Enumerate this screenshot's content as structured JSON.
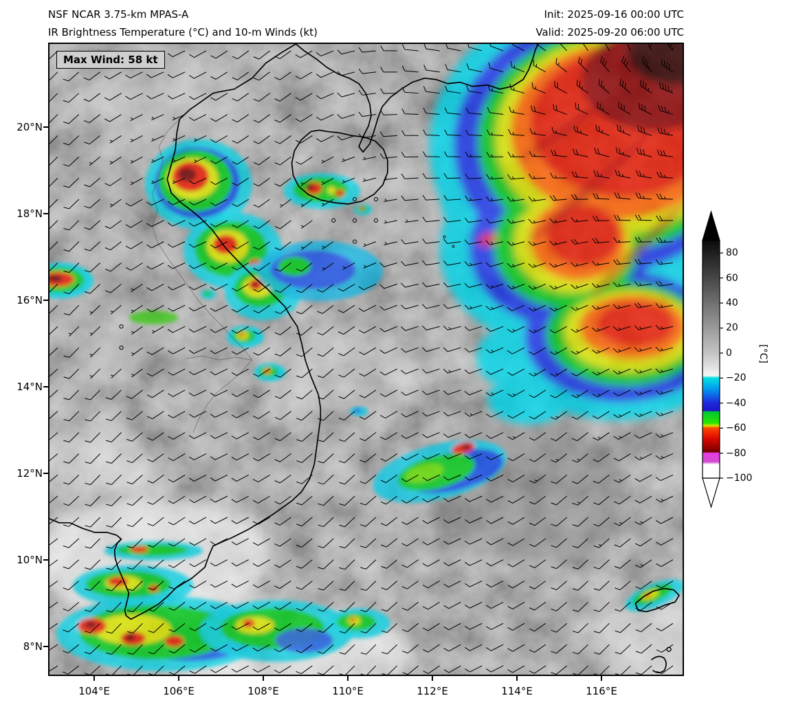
{
  "header": {
    "model_line": "NSF NCAR 3.75-km MPAS-A",
    "field_line": "IR Brightness Temperature (°C) and 10-m Winds (kt)",
    "init_line": "Init: 2025-09-16 00:00 UTC",
    "valid_line": "Valid: 2025-09-20 06:00 UTC"
  },
  "map": {
    "max_wind_label": "Max Wind: 58 kt"
  },
  "axes": {
    "y_ticks": [
      "20°N",
      "18°N",
      "16°N",
      "14°N",
      "12°N",
      "10°N",
      "8°N"
    ],
    "x_ticks": [
      "104°E",
      "106°E",
      "108°E",
      "110°E",
      "112°E",
      "114°E",
      "116°E"
    ]
  },
  "colorbar": {
    "ticks": [
      "80",
      "60",
      "40",
      "20",
      "0",
      "−20",
      "−40",
      "−60",
      "−80",
      "−100"
    ],
    "unit_label": "[°C]"
  },
  "chart_data": {
    "type": "heatmap",
    "title": "IR Brightness Temperature (°C) and 10-m Winds (kt)",
    "model": "NSF NCAR 3.75-km MPAS-A",
    "init_time": "2025-09-16 00:00 UTC",
    "valid_time": "2025-09-20 06:00 UTC",
    "max_wind_kt": 58,
    "wind_units": "kt",
    "x_axis": {
      "unit": "°E",
      "ticks": [
        104,
        106,
        108,
        110,
        112,
        114,
        116
      ],
      "range": [
        102.9,
        118.0
      ]
    },
    "y_axis": {
      "unit": "°N",
      "ticks": [
        20,
        18,
        16,
        14,
        12,
        10,
        8
      ],
      "range": [
        7.3,
        22.0
      ]
    },
    "colorbar": {
      "unit": "°C",
      "ticks": [
        80,
        60,
        40,
        20,
        0,
        -20,
        -40,
        -60,
        -80,
        -100
      ],
      "extend": "both",
      "color_stops": [
        {
          "value": 90,
          "color": "#0a0a0a"
        },
        {
          "value": 80,
          "color": "#1f1f1f"
        },
        {
          "value": 60,
          "color": "#474747"
        },
        {
          "value": 40,
          "color": "#707070"
        },
        {
          "value": 20,
          "color": "#9a9a9a"
        },
        {
          "value": 0,
          "color": "#c4c4c4"
        },
        {
          "value": -18,
          "color": "#f5f5f5"
        },
        {
          "value": -20,
          "color": "#00e0e0"
        },
        {
          "value": -40,
          "color": "#1e28dc"
        },
        {
          "value": -47,
          "color": "#00c832"
        },
        {
          "value": -56,
          "color": "#28e600"
        },
        {
          "value": -58,
          "color": "#d2e600"
        },
        {
          "value": -60,
          "color": "#ff4600"
        },
        {
          "value": -68,
          "color": "#dc0a00"
        },
        {
          "value": -79,
          "color": "#6e0000"
        },
        {
          "value": -80,
          "color": "#e63ce6"
        },
        {
          "value": -87,
          "color": "#d24cd2"
        },
        {
          "value": -90,
          "color": "#ffffff"
        },
        {
          "value": -100,
          "color": "#ffffff"
        }
      ]
    }
  }
}
